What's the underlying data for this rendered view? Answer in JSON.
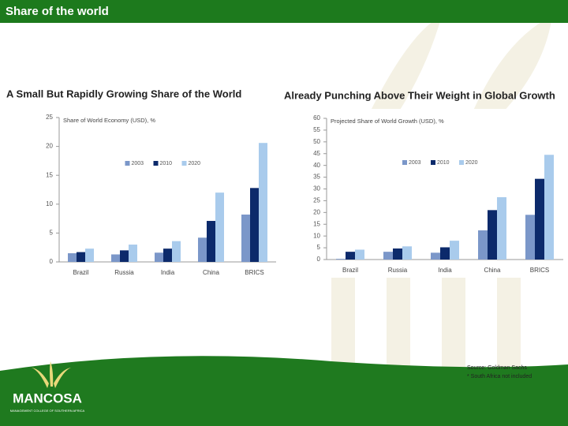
{
  "header": {
    "title": "Share of the world"
  },
  "chart_data": [
    {
      "type": "bar",
      "title": "A Small But Rapidly Growing Share of the World",
      "y_label": "Share of World Economy (USD), %",
      "categories": [
        "Brazil",
        "Russia",
        "India",
        "China",
        "BRICS"
      ],
      "series": [
        {
          "name": "2003",
          "color": "#7b97c9",
          "values": [
            1.5,
            1.3,
            1.6,
            4.2,
            8.2
          ]
        },
        {
          "name": "2010",
          "color": "#0c2a6b",
          "values": [
            1.7,
            2.0,
            2.3,
            7.1,
            12.8
          ]
        },
        {
          "name": "2020",
          "color": "#a9cbec",
          "values": [
            2.3,
            3.0,
            3.6,
            12.0,
            20.6
          ]
        }
      ],
      "ylim": [
        0,
        25
      ],
      "yticks": [
        0,
        5,
        10,
        15,
        20,
        25
      ]
    },
    {
      "type": "bar",
      "title": "Already Punching Above Their Weight in Global Growth",
      "y_label": "Projected Share of World Growth (USD), %",
      "categories": [
        "Brazil",
        "Russia",
        "India",
        "China",
        "BRICS"
      ],
      "series": [
        {
          "name": "2003",
          "color": "#7b97c9",
          "values": [
            0.3,
            3.3,
            2.9,
            12.4,
            19.0
          ]
        },
        {
          "name": "2010",
          "color": "#0c2a6b",
          "values": [
            3.3,
            4.7,
            5.2,
            21.0,
            34.3
          ]
        },
        {
          "name": "2020",
          "color": "#a9cbec",
          "values": [
            4.2,
            5.6,
            8.0,
            26.5,
            44.5
          ]
        }
      ],
      "ylim": [
        0,
        60
      ],
      "yticks": [
        0,
        5,
        10,
        15,
        20,
        25,
        30,
        35,
        40,
        45,
        50,
        55,
        60
      ]
    }
  ],
  "notes": [
    "Source: Goldman Sachs",
    "* South Africa not included"
  ],
  "logo": {
    "name": "MANCOSA",
    "tagline": "MANAGEMENT COLLEGE OF SOUTHERN AFRICA"
  }
}
